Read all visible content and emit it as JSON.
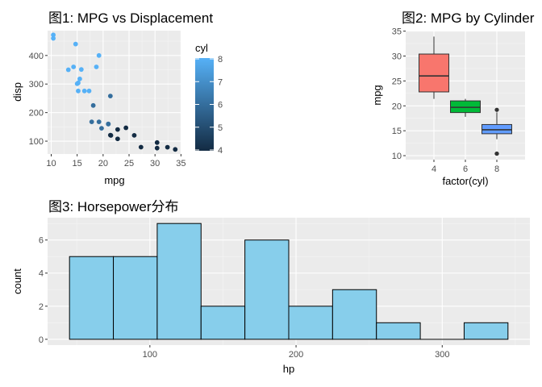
{
  "chart_data": [
    {
      "type": "scatter",
      "title": "图1: MPG vs Displacement",
      "xlabel": "mpg",
      "ylabel": "disp",
      "xlim": [
        9.3,
        35.1
      ],
      "ylim": [
        55,
        487
      ],
      "xticks": [
        10,
        15,
        20,
        25,
        30,
        35
      ],
      "yticks": [
        100,
        200,
        300,
        400
      ],
      "legend": {
        "title": "cyl",
        "position": "right",
        "range": [
          4,
          8
        ],
        "ticks": [
          4,
          5,
          6,
          7,
          8
        ],
        "low_color": "#132B43",
        "high_color": "#56B1F7"
      },
      "points": [
        {
          "x": 21.0,
          "y": 160,
          "cyl": 6
        },
        {
          "x": 21.0,
          "y": 160,
          "cyl": 6
        },
        {
          "x": 22.8,
          "y": 108,
          "cyl": 4
        },
        {
          "x": 21.4,
          "y": 258,
          "cyl": 6
        },
        {
          "x": 18.7,
          "y": 360,
          "cyl": 8
        },
        {
          "x": 18.1,
          "y": 225,
          "cyl": 6
        },
        {
          "x": 14.3,
          "y": 360,
          "cyl": 8
        },
        {
          "x": 24.4,
          "y": 146.7,
          "cyl": 4
        },
        {
          "x": 22.8,
          "y": 140.8,
          "cyl": 4
        },
        {
          "x": 19.2,
          "y": 167.6,
          "cyl": 6
        },
        {
          "x": 17.8,
          "y": 167.6,
          "cyl": 6
        },
        {
          "x": 16.4,
          "y": 275.8,
          "cyl": 8
        },
        {
          "x": 17.3,
          "y": 275.8,
          "cyl": 8
        },
        {
          "x": 15.2,
          "y": 275.8,
          "cyl": 8
        },
        {
          "x": 10.4,
          "y": 472,
          "cyl": 8
        },
        {
          "x": 10.4,
          "y": 460,
          "cyl": 8
        },
        {
          "x": 14.7,
          "y": 440,
          "cyl": 8
        },
        {
          "x": 32.4,
          "y": 78.7,
          "cyl": 4
        },
        {
          "x": 30.4,
          "y": 75.7,
          "cyl": 4
        },
        {
          "x": 33.9,
          "y": 71.1,
          "cyl": 4
        },
        {
          "x": 21.5,
          "y": 120.1,
          "cyl": 4
        },
        {
          "x": 15.5,
          "y": 318,
          "cyl": 8
        },
        {
          "x": 15.2,
          "y": 304,
          "cyl": 8
        },
        {
          "x": 13.3,
          "y": 350,
          "cyl": 8
        },
        {
          "x": 19.2,
          "y": 400,
          "cyl": 8
        },
        {
          "x": 27.3,
          "y": 79,
          "cyl": 4
        },
        {
          "x": 26.0,
          "y": 120.3,
          "cyl": 4
        },
        {
          "x": 30.4,
          "y": 95.1,
          "cyl": 4
        },
        {
          "x": 15.8,
          "y": 351,
          "cyl": 8
        },
        {
          "x": 19.7,
          "y": 145,
          "cyl": 6
        },
        {
          "x": 15.0,
          "y": 301,
          "cyl": 8
        },
        {
          "x": 21.4,
          "y": 121,
          "cyl": 4
        }
      ]
    },
    {
      "type": "box",
      "title": "图2: MPG by Cylinder",
      "xlabel": "factor(cyl)",
      "ylabel": "mpg",
      "ylim": [
        9.2,
        35.1
      ],
      "yticks": [
        10,
        15,
        20,
        25,
        30,
        35
      ],
      "categories": [
        "4",
        "6",
        "8"
      ],
      "boxes": [
        {
          "category": "4",
          "min": 21.4,
          "q1": 22.8,
          "median": 26.0,
          "q3": 30.4,
          "max": 33.9,
          "outliers": [],
          "color": "#F8766D"
        },
        {
          "category": "6",
          "min": 17.8,
          "q1": 18.65,
          "median": 19.7,
          "q3": 21.0,
          "max": 21.4,
          "outliers": [],
          "color": "#00BA38"
        },
        {
          "category": "8",
          "min": 13.3,
          "q1": 14.4,
          "median": 15.2,
          "q3": 16.25,
          "max": 18.7,
          "outliers": [
            10.4,
            10.4,
            19.2
          ],
          "color": "#619CFF"
        }
      ]
    },
    {
      "type": "histogram",
      "title": "图3: Horsepower分布",
      "xlabel": "hp",
      "ylabel": "count",
      "xlim": [
        30,
        360
      ],
      "ylim": [
        -0.35,
        7.35
      ],
      "xticks": [
        100,
        200,
        300
      ],
      "yticks": [
        0,
        2,
        4,
        6
      ],
      "fill": "#87CEEB",
      "bins": [
        {
          "start": 45,
          "end": 75,
          "count": 5
        },
        {
          "start": 75,
          "end": 105,
          "count": 5
        },
        {
          "start": 105,
          "end": 135,
          "count": 7
        },
        {
          "start": 135,
          "end": 165,
          "count": 2
        },
        {
          "start": 165,
          "end": 195,
          "count": 6
        },
        {
          "start": 195,
          "end": 225,
          "count": 2
        },
        {
          "start": 225,
          "end": 255,
          "count": 3
        },
        {
          "start": 255,
          "end": 285,
          "count": 1
        },
        {
          "start": 285,
          "end": 315,
          "count": 0
        },
        {
          "start": 315,
          "end": 345,
          "count": 1
        }
      ]
    }
  ]
}
